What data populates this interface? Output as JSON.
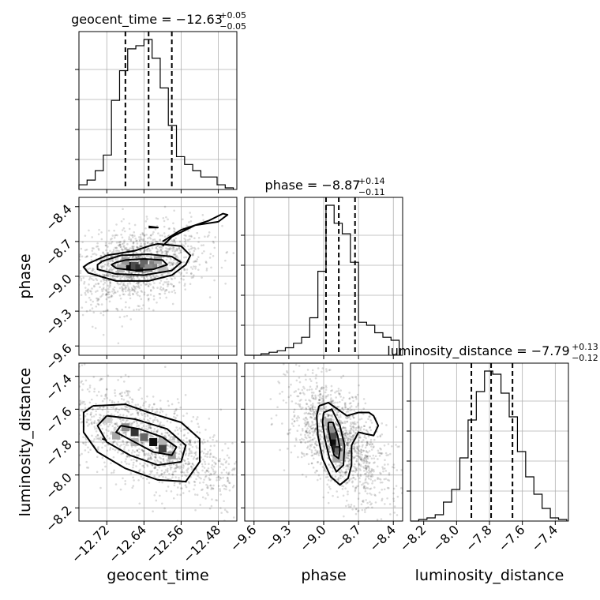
{
  "chart_data": {
    "type": "corner",
    "parameters": [
      "geocent_time",
      "phase",
      "luminosity_distance"
    ],
    "axis_labels": {
      "geocent_time": "geocent_time",
      "phase": "phase",
      "luminosity_distance": "luminosity_distance"
    },
    "ranges": {
      "geocent_time": [
        -12.78,
        -12.44
      ],
      "phase": [
        -9.68,
        -8.32
      ],
      "luminosity_distance": [
        -8.28,
        -7.32
      ]
    },
    "ticks": {
      "geocent_time": [
        "−12.72",
        "−12.64",
        "−12.56",
        "−12.48"
      ],
      "geocent_time_values": [
        -12.72,
        -12.64,
        -12.56,
        -12.48
      ],
      "phase": [
        "−9.6",
        "−9.3",
        "−9.0",
        "−8.7",
        "−8.4"
      ],
      "phase_values": [
        -9.6,
        -9.3,
        -9.0,
        -8.7,
        -8.4
      ],
      "luminosity_distance": [
        "−8.2",
        "−8.0",
        "−7.8",
        "−7.6",
        "−7.4"
      ],
      "luminosity_distance_values": [
        -8.2,
        -8.0,
        -7.8,
        -7.6,
        -7.4
      ]
    },
    "titles": [
      {
        "label": "geocent_time = −12.63",
        "sup": "+0.05",
        "sub": "−0.05"
      },
      {
        "label": "phase = −8.87",
        "sup": "+0.14",
        "sub": "−0.11"
      },
      {
        "label": "luminosity_distance = −7.79",
        "sup": "+0.13",
        "sub": "−0.12"
      }
    ],
    "quantiles": {
      "geocent_time": [
        -12.68,
        -12.63,
        -12.58
      ],
      "phase": [
        -8.98,
        -8.87,
        -8.73
      ],
      "luminosity_distance": [
        -7.91,
        -7.79,
        -7.66
      ]
    },
    "histograms": {
      "geocent_time": {
        "edges": [
          -12.78,
          -12.7625,
          -12.745,
          -12.7275,
          -12.71,
          -12.6925,
          -12.675,
          -12.6575,
          -12.64,
          -12.6225,
          -12.605,
          -12.5875,
          -12.57,
          -12.5525,
          -12.535,
          -12.5175,
          -12.5,
          -12.4825,
          -12.465,
          -12.4475
        ],
        "counts": [
          0.03,
          0.06,
          0.12,
          0.22,
          0.57,
          0.76,
          0.9,
          0.92,
          0.96,
          0.84,
          0.65,
          0.41,
          0.21,
          0.16,
          0.12,
          0.08,
          0.08,
          0.03,
          0.01
        ]
      },
      "phase": {
        "edges": [
          -9.68,
          -9.61,
          -9.54,
          -9.47,
          -9.4,
          -9.33,
          -9.26,
          -9.19,
          -9.12,
          -9.05,
          -8.98,
          -8.91,
          -8.84,
          -8.77,
          -8.7,
          -8.63,
          -8.56,
          -8.49,
          -8.42,
          -8.35
        ],
        "counts": [
          0.0,
          0.0,
          0.01,
          0.02,
          0.03,
          0.05,
          0.08,
          0.12,
          0.25,
          0.56,
          1.0,
          0.88,
          0.81,
          0.62,
          0.22,
          0.2,
          0.15,
          0.12,
          0.1
        ]
      },
      "luminosity_distance": {
        "edges": [
          -8.28,
          -8.23,
          -8.18,
          -8.13,
          -8.08,
          -8.03,
          -7.98,
          -7.93,
          -7.88,
          -7.83,
          -7.78,
          -7.73,
          -7.68,
          -7.63,
          -7.58,
          -7.53,
          -7.48,
          -7.43,
          -7.38,
          -7.33
        ],
        "counts": [
          0.0,
          0.01,
          0.02,
          0.04,
          0.12,
          0.2,
          0.4,
          0.64,
          0.82,
          0.95,
          0.93,
          0.81,
          0.66,
          0.44,
          0.28,
          0.17,
          0.08,
          0.02,
          0.01
        ]
      }
    },
    "pairs": [
      {
        "x": "geocent_time",
        "y": "phase",
        "center": [
          -12.655,
          -8.91
        ],
        "density_cells": [
          {
            "x": -12.67,
            "y": -8.91,
            "shade": 0.95
          },
          {
            "x": -12.66,
            "y": -8.91,
            "shade": 0.7
          },
          {
            "x": -12.65,
            "y": -8.93,
            "shade": 0.8
          },
          {
            "x": -12.64,
            "y": -8.89,
            "shade": 0.6
          },
          {
            "x": -12.62,
            "y": -8.9,
            "shade": 0.5
          },
          {
            "x": -12.68,
            "y": -8.87,
            "shade": 0.4
          },
          {
            "x": -12.63,
            "y": -8.93,
            "shade": 0.45
          },
          {
            "x": -12.61,
            "y": -8.86,
            "shade": 0.35
          },
          {
            "x": -12.69,
            "y": -8.93,
            "shade": 0.3
          },
          {
            "x": -12.6,
            "y": -8.93,
            "shade": 0.25
          }
        ],
        "contours": [
          [
            [
              -12.7,
              -8.88
            ],
            [
              -12.68,
              -8.86
            ],
            [
              -12.64,
              -8.85
            ],
            [
              -12.6,
              -8.86
            ],
            [
              -12.59,
              -8.9
            ],
            [
              -12.62,
              -8.94
            ],
            [
              -12.66,
              -8.95
            ],
            [
              -12.7,
              -8.93
            ],
            [
              -12.71,
              -8.9
            ],
            [
              -12.7,
              -8.88
            ]
          ],
          [
            [
              -12.73,
              -8.87
            ],
            [
              -12.69,
              -8.82
            ],
            [
              -12.63,
              -8.81
            ],
            [
              -12.58,
              -8.83
            ],
            [
              -12.56,
              -8.88
            ],
            [
              -12.58,
              -8.95
            ],
            [
              -12.64,
              -8.99
            ],
            [
              -12.7,
              -8.98
            ],
            [
              -12.74,
              -8.94
            ],
            [
              -12.74,
              -8.9
            ],
            [
              -12.73,
              -8.87
            ]
          ],
          [
            [
              -12.76,
              -8.89
            ],
            [
              -12.72,
              -8.82
            ],
            [
              -12.66,
              -8.78
            ],
            [
              -12.63,
              -8.74
            ],
            [
              -12.61,
              -8.72
            ],
            [
              -12.56,
              -8.74
            ],
            [
              -12.54,
              -8.82
            ],
            [
              -12.55,
              -8.9
            ],
            [
              -12.58,
              -8.99
            ],
            [
              -12.63,
              -9.04
            ],
            [
              -12.7,
              -9.04
            ],
            [
              -12.76,
              -8.97
            ],
            [
              -12.77,
              -8.92
            ],
            [
              -12.76,
              -8.89
            ]
          ],
          [
            [
              -12.63,
              -8.57
            ],
            [
              -12.61,
              -8.58
            ],
            [
              -12.63,
              -8.58
            ]
          ],
          [
            [
              -12.6,
              -8.74
            ],
            [
              -12.58,
              -8.66
            ],
            [
              -12.53,
              -8.56
            ],
            [
              -12.48,
              -8.53
            ],
            [
              -12.46,
              -8.47
            ],
            [
              -12.47,
              -8.46
            ],
            [
              -12.5,
              -8.52
            ],
            [
              -12.56,
              -8.6
            ],
            [
              -12.6,
              -8.7
            ]
          ]
        ],
        "scatter_spread": [
          0.05,
          0.14
        ]
      },
      {
        "x": "geocent_time",
        "y": "luminosity_distance",
        "center": [
          -12.63,
          -7.79
        ],
        "density_cells": [
          {
            "x": -12.62,
            "y": -7.8,
            "shade": 0.95
          },
          {
            "x": -12.66,
            "y": -7.74,
            "shade": 0.8
          },
          {
            "x": -12.6,
            "y": -7.84,
            "shade": 0.75
          },
          {
            "x": -12.64,
            "y": -7.77,
            "shade": 0.6
          },
          {
            "x": -12.68,
            "y": -7.71,
            "shade": 0.45
          },
          {
            "x": -12.58,
            "y": -7.88,
            "shade": 0.4
          },
          {
            "x": -12.7,
            "y": -7.76,
            "shade": 0.35
          },
          {
            "x": -12.6,
            "y": -7.79,
            "shade": 0.3
          },
          {
            "x": -12.66,
            "y": -7.8,
            "shade": 0.3
          },
          {
            "x": -12.72,
            "y": -7.66,
            "shade": 0.2
          }
        ],
        "contours": [
          [
            [
              -12.69,
              -7.7
            ],
            [
              -12.65,
              -7.72
            ],
            [
              -12.6,
              -7.77
            ],
            [
              -12.57,
              -7.83
            ],
            [
              -12.58,
              -7.88
            ],
            [
              -12.62,
              -7.86
            ],
            [
              -12.66,
              -7.8
            ],
            [
              -12.7,
              -7.74
            ],
            [
              -12.69,
              -7.7
            ]
          ],
          [
            [
              -12.72,
              -7.64
            ],
            [
              -12.66,
              -7.66
            ],
            [
              -12.59,
              -7.72
            ],
            [
              -12.55,
              -7.82
            ],
            [
              -12.56,
              -7.92
            ],
            [
              -12.61,
              -7.94
            ],
            [
              -12.67,
              -7.88
            ],
            [
              -12.72,
              -7.8
            ],
            [
              -12.74,
              -7.7
            ],
            [
              -12.72,
              -7.64
            ]
          ],
          [
            [
              -12.75,
              -7.58
            ],
            [
              -12.68,
              -7.57
            ],
            [
              -12.63,
              -7.62
            ],
            [
              -12.56,
              -7.68
            ],
            [
              -12.52,
              -7.78
            ],
            [
              -12.52,
              -7.92
            ],
            [
              -12.55,
              -8.04
            ],
            [
              -12.61,
              -8.03
            ],
            [
              -12.68,
              -7.96
            ],
            [
              -12.74,
              -7.86
            ],
            [
              -12.77,
              -7.74
            ],
            [
              -12.77,
              -7.62
            ],
            [
              -12.75,
              -7.58
            ]
          ],
          [
            [
              -12.73,
              -7.78
            ],
            [
              -12.72,
              -7.79
            ]
          ]
        ],
        "scatter_spread": [
          0.07,
          0.15
        ]
      },
      {
        "x": "phase",
        "y": "luminosity_distance",
        "center": [
          -8.87,
          -7.79
        ],
        "density_cells": [
          {
            "x": -8.91,
            "y": -7.8,
            "shade": 0.95
          },
          {
            "x": -8.89,
            "y": -7.84,
            "shade": 0.85
          },
          {
            "x": -8.92,
            "y": -7.76,
            "shade": 0.7
          },
          {
            "x": -8.87,
            "y": -7.86,
            "shade": 0.6
          },
          {
            "x": -8.94,
            "y": -7.72,
            "shade": 0.45
          },
          {
            "x": -8.86,
            "y": -7.8,
            "shade": 0.4
          },
          {
            "x": -8.89,
            "y": -7.9,
            "shade": 0.35
          },
          {
            "x": -8.96,
            "y": -7.68,
            "shade": 0.3
          },
          {
            "x": -8.84,
            "y": -7.88,
            "shade": 0.25
          }
        ],
        "contours": [
          [
            [
              -8.96,
              -7.68
            ],
            [
              -8.92,
              -7.68
            ],
            [
              -8.88,
              -7.76
            ],
            [
              -8.86,
              -7.84
            ],
            [
              -8.87,
              -7.9
            ],
            [
              -8.91,
              -7.88
            ],
            [
              -8.94,
              -7.8
            ],
            [
              -8.96,
              -7.72
            ],
            [
              -8.96,
              -7.68
            ]
          ],
          [
            [
              -9.0,
              -7.62
            ],
            [
              -8.93,
              -7.6
            ],
            [
              -8.86,
              -7.7
            ],
            [
              -8.82,
              -7.82
            ],
            [
              -8.83,
              -7.94
            ],
            [
              -8.89,
              -7.98
            ],
            [
              -8.95,
              -7.9
            ],
            [
              -8.99,
              -7.78
            ],
            [
              -9.01,
              -7.68
            ],
            [
              -9.0,
              -7.62
            ]
          ],
          [
            [
              -9.04,
              -7.58
            ],
            [
              -8.96,
              -7.56
            ],
            [
              -8.88,
              -7.6
            ],
            [
              -8.8,
              -7.64
            ],
            [
              -8.7,
              -7.62
            ],
            [
              -8.61,
              -7.62
            ],
            [
              -8.57,
              -7.64
            ],
            [
              -8.53,
              -7.7
            ],
            [
              -8.57,
              -7.76
            ],
            [
              -8.64,
              -7.75
            ],
            [
              -8.7,
              -7.74
            ],
            [
              -8.76,
              -7.82
            ],
            [
              -8.76,
              -7.94
            ],
            [
              -8.79,
              -8.02
            ],
            [
              -8.86,
              -8.06
            ],
            [
              -8.94,
              -8.01
            ],
            [
              -9.01,
              -7.9
            ],
            [
              -9.05,
              -7.76
            ],
            [
              -9.06,
              -7.64
            ],
            [
              -9.04,
              -7.58
            ]
          ]
        ],
        "scatter_spread": [
          0.15,
          0.15
        ]
      }
    ]
  }
}
